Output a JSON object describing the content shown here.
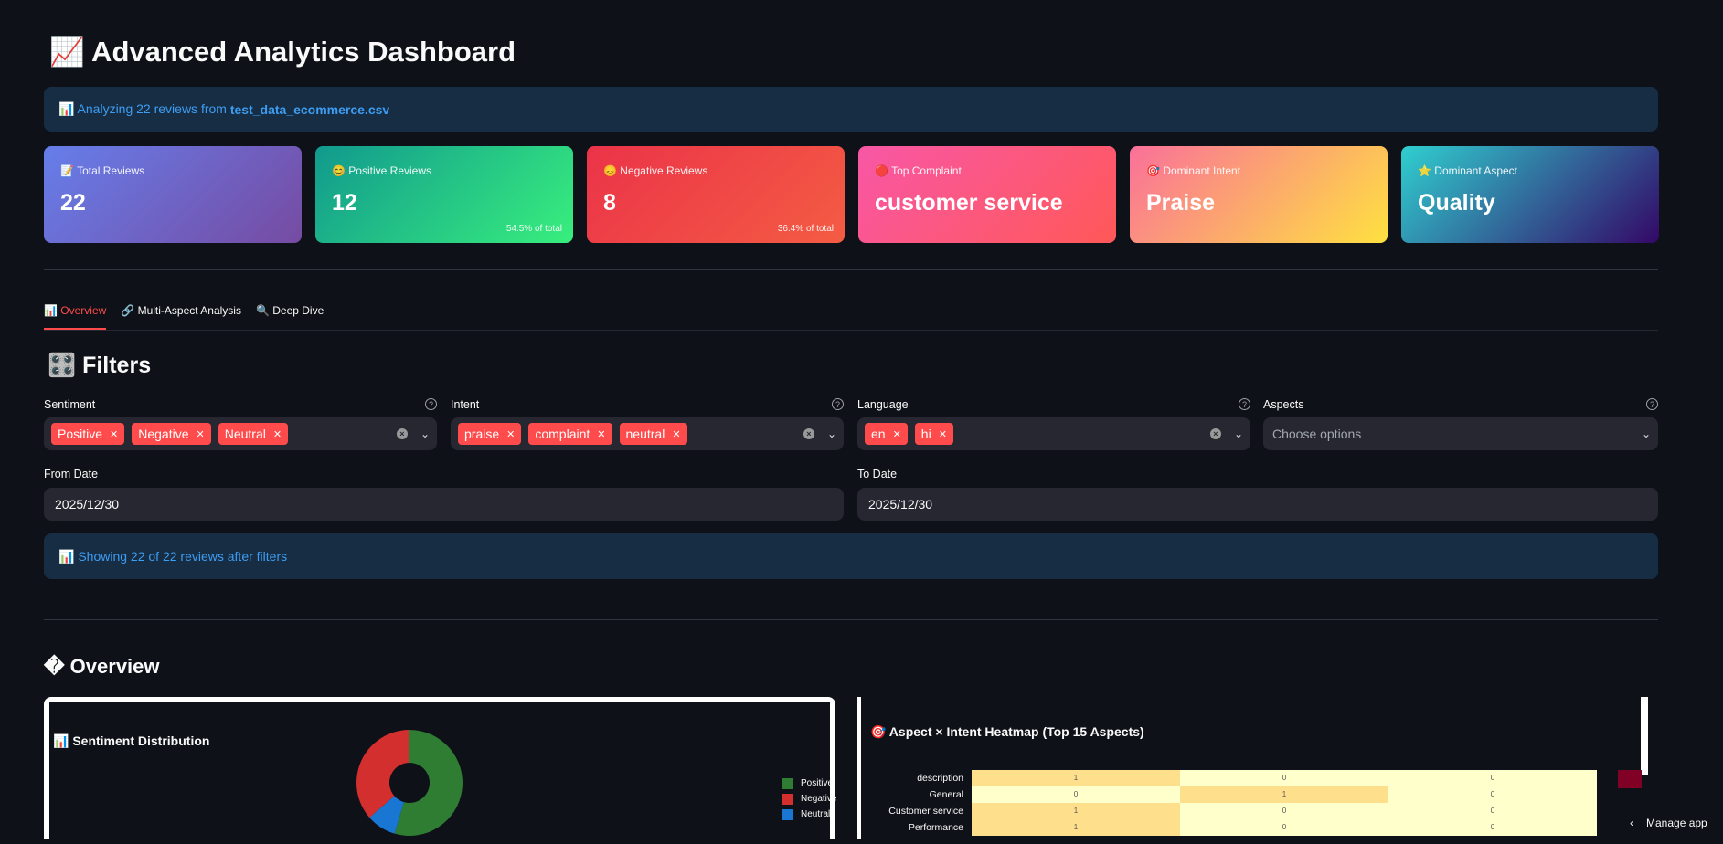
{
  "header": {
    "title": "📈 Advanced Analytics Dashboard"
  },
  "info": {
    "prefix": "📊 Analyzing 22 reviews from ",
    "file": "test_data_ecommerce.csv"
  },
  "metrics": [
    {
      "icon": "📝",
      "label": "Total Reviews",
      "value": "22",
      "sub": ""
    },
    {
      "icon": "😊",
      "label": "Positive Reviews",
      "value": "12",
      "sub": "54.5% of total"
    },
    {
      "icon": "😞",
      "label": "Negative Reviews",
      "value": "8",
      "sub": "36.4% of total"
    },
    {
      "icon": "🔴",
      "label": "Top Complaint",
      "value": "customer service",
      "sub": ""
    },
    {
      "icon": "🎯",
      "label": "Dominant Intent",
      "value": "Praise",
      "sub": ""
    },
    {
      "icon": "⭐",
      "label": "Dominant Aspect",
      "value": "Quality",
      "sub": ""
    }
  ],
  "tabs": [
    "📊 Overview",
    "🔗 Multi-Aspect Analysis",
    "🔍 Deep Dive"
  ],
  "filters": {
    "title": "🎛️ Filters",
    "sentiment": {
      "label": "Sentiment",
      "chips": [
        "Positive",
        "Negative",
        "Neutral"
      ]
    },
    "intent": {
      "label": "Intent",
      "chips": [
        "praise",
        "complaint",
        "neutral"
      ]
    },
    "language": {
      "label": "Language",
      "chips": [
        "en",
        "hi"
      ]
    },
    "aspects": {
      "label": "Aspects",
      "placeholder": "Choose options"
    },
    "from_date": {
      "label": "From Date",
      "value": "2025/12/30"
    },
    "to_date": {
      "label": "To Date",
      "value": "2025/12/30"
    }
  },
  "showing": "📊 Showing 22 of 22 reviews after filters",
  "overview": {
    "title": "� Overview"
  },
  "chart_data": [
    {
      "type": "pie",
      "title": "📊 Sentiment Distribution",
      "categories": [
        "Positive",
        "Negative",
        "Neutral"
      ],
      "values": [
        12,
        8,
        2
      ],
      "colors": [
        "#2e7d32",
        "#d32f2f",
        "#1976d2"
      ],
      "legend_labels": [
        "Positive",
        "Negative",
        "Neutral"
      ],
      "legend": "right"
    },
    {
      "type": "heatmap",
      "title": "🎯 Aspect × Intent Heatmap (Top 15 Aspects)",
      "rows": [
        "description",
        "General",
        "Customer service",
        "Performance"
      ],
      "values": [
        [
          1,
          0,
          0
        ],
        [
          0,
          1,
          0
        ],
        [
          1,
          0,
          0
        ],
        [
          1,
          0,
          0
        ]
      ]
    }
  ],
  "manage_app": "Manage app"
}
